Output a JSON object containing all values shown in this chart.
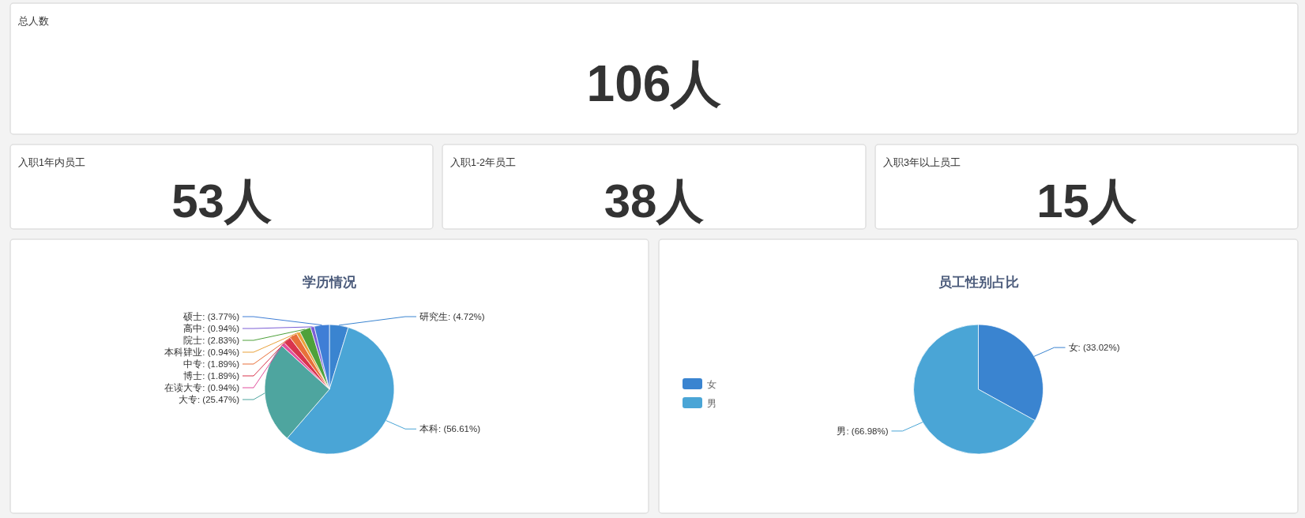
{
  "chart_data": [
    {
      "type": "other",
      "title": "总人数",
      "annotations": [
        "106人"
      ]
    },
    {
      "type": "other",
      "title": "入职1年内员工",
      "annotations": [
        "53人"
      ]
    },
    {
      "type": "other",
      "title": "入职1-2年员工",
      "annotations": [
        "38人"
      ]
    },
    {
      "type": "other",
      "title": "入职3年以上员工",
      "annotations": [
        "15人"
      ]
    },
    {
      "type": "pie",
      "title": "学历情况",
      "categories": [
        "研究生",
        "本科",
        "大专",
        "在读大专",
        "博士",
        "中专",
        "本科肄业",
        "院士",
        "高中",
        "硕士"
      ],
      "values": [
        4.72,
        56.61,
        25.47,
        0.94,
        1.89,
        1.89,
        0.94,
        2.83,
        0.94,
        3.77
      ],
      "colors": [
        "#3a84d0",
        "#4aa5d6",
        "#4ea59f",
        "#e24f9d",
        "#d9344d",
        "#e8703a",
        "#e9a23b",
        "#4ea13a",
        "#7c5ed6",
        "#3f7ed6"
      ],
      "value_labels": [
        ": (4.72%)",
        ": (56.61%)",
        ": (25.47%)",
        ": (0.94%)",
        ": (1.89%)",
        ": (1.89%)",
        ": (0.94%)",
        ": (2.83%)",
        ": (0.94%)",
        ": (3.77%)"
      ]
    },
    {
      "type": "pie",
      "title": "员工性别占比",
      "categories": [
        "女",
        "男"
      ],
      "values": [
        33.02,
        66.98
      ],
      "colors": [
        "#3a84d0",
        "#4aa5d6"
      ],
      "value_labels": [
        ": (33.02%)",
        ": (66.98%)"
      ],
      "legend": "left"
    }
  ]
}
